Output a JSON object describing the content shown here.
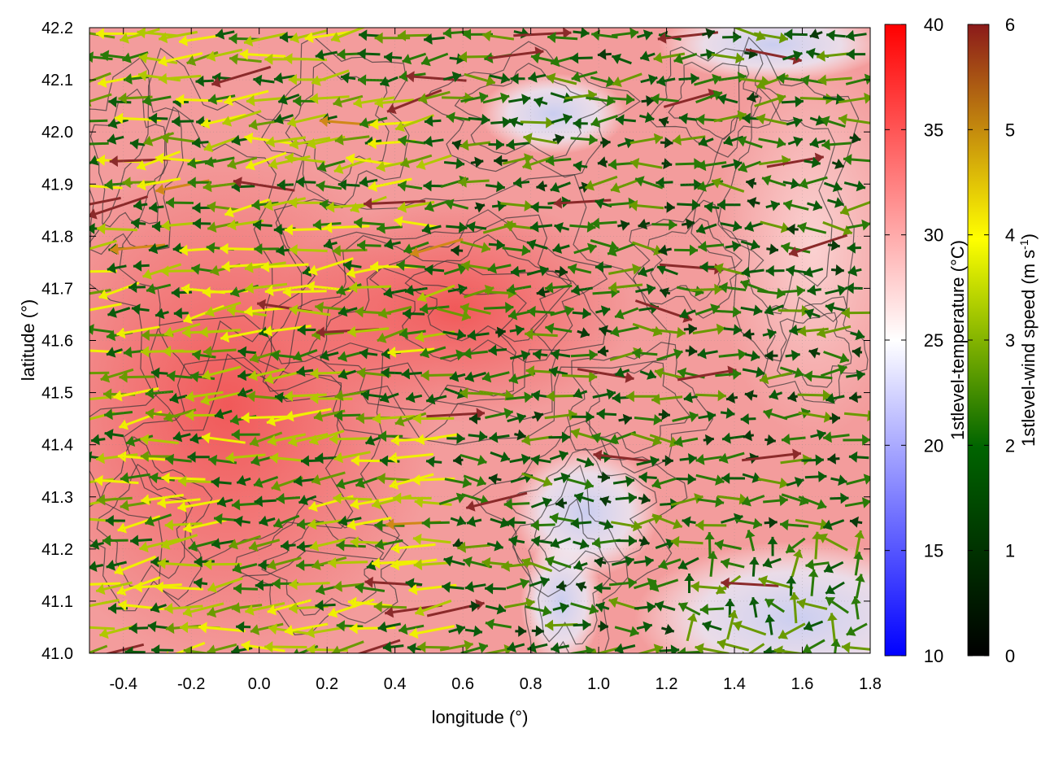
{
  "chart_data": {
    "type": "heatmap",
    "xlabel": "longitude (°)",
    "ylabel": "latitude (°)",
    "xlim": [
      -0.5,
      1.8
    ],
    "ylim": [
      41.0,
      42.2
    ],
    "xticks": [
      "-0.4",
      "-0.2",
      "0.0",
      "0.2",
      "0.4",
      "0.6",
      "0.8",
      "1.0",
      "1.2",
      "1.4",
      "1.6",
      "1.8"
    ],
    "yticks": [
      "41.0",
      "41.1",
      "41.2",
      "41.3",
      "41.4",
      "41.5",
      "41.6",
      "41.7",
      "41.8",
      "41.9",
      "42.0",
      "42.1",
      "42.2"
    ],
    "grid": true,
    "temperature_colorbar": {
      "label": "1stlevel-temperature (°C)",
      "range": [
        10,
        40
      ],
      "ticks": [
        "10",
        "15",
        "20",
        "25",
        "30",
        "35",
        "40"
      ],
      "colors": [
        "#0000ff",
        "#ffffff",
        "#ff0000"
      ]
    },
    "wind_colorbar": {
      "label": "1stlevel-wind speed (m s⁻¹)",
      "label_main": "1stlevel-wind speed (m s",
      "label_sup": "-1",
      "label_end": ")",
      "range": [
        0,
        6
      ],
      "ticks": [
        "0",
        "1",
        "2",
        "3",
        "4",
        "5",
        "6"
      ],
      "colors": [
        "#000000",
        "#006400",
        "#ffff00",
        "#8b1a1a"
      ]
    },
    "temperature_field": {
      "description_regions": [
        {
          "lon": 0.0,
          "lat": 41.5,
          "temp": 33
        },
        {
          "lon": 0.6,
          "lat": 41.6,
          "temp": 33
        },
        {
          "lon": 1.0,
          "lat": 41.3,
          "temp": 24
        },
        {
          "lon": 1.6,
          "lat": 41.1,
          "temp": 22
        },
        {
          "lon": 1.5,
          "lat": 42.15,
          "temp": 20
        },
        {
          "lon": 1.5,
          "lat": 41.8,
          "temp": 30
        }
      ]
    }
  }
}
